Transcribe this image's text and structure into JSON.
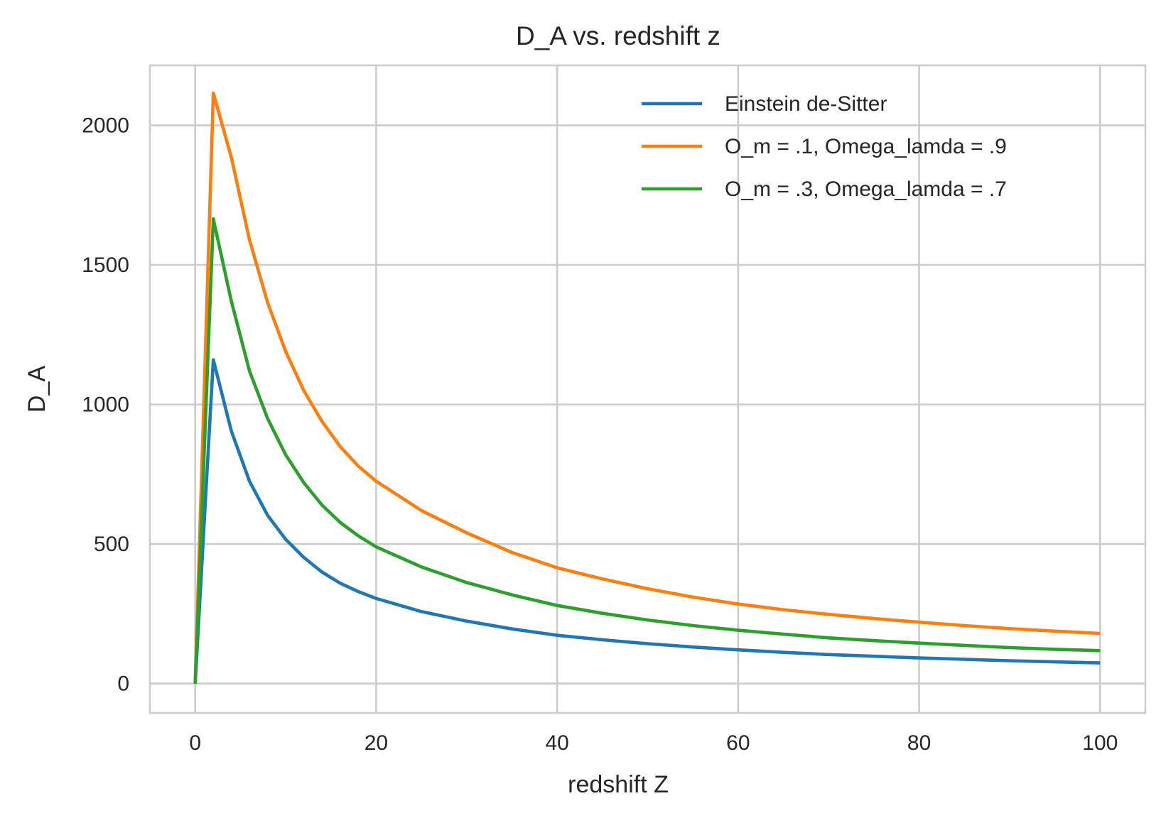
{
  "chart_data": {
    "type": "line",
    "title": "D_A vs. redshift z",
    "xlabel": "redshift Z",
    "ylabel": "D_A",
    "xlim": [
      -5,
      105
    ],
    "ylim": [
      -105,
      2215
    ],
    "xticks": [
      0,
      20,
      40,
      60,
      80,
      100
    ],
    "yticks": [
      0,
      500,
      1000,
      1500,
      2000
    ],
    "grid": true,
    "legend_position": "top-right",
    "x": [
      0,
      2,
      4,
      6,
      8,
      10,
      12,
      14,
      16,
      18,
      20,
      25,
      30,
      35,
      40,
      45,
      50,
      55,
      60,
      65,
      70,
      75,
      80,
      85,
      90,
      95,
      100
    ],
    "series": [
      {
        "name": "Einstein de-Sitter",
        "color": "#1f77b4",
        "values": [
          0,
          1160,
          905,
          725,
          603,
          517,
          452,
          400,
          360,
          330,
          305,
          258,
          224,
          196,
          173,
          157,
          143,
          131,
          121,
          112,
          104,
          98,
          92,
          87,
          82,
          78,
          74
        ]
      },
      {
        "name": "O_m = .1, Omega_lamda = .9",
        "color": "#ff7f0e",
        "values": [
          0,
          2115,
          1885,
          1590,
          1365,
          1190,
          1050,
          940,
          850,
          780,
          725,
          620,
          540,
          470,
          415,
          375,
          340,
          310,
          285,
          265,
          248,
          233,
          220,
          208,
          197,
          188,
          180
        ]
      },
      {
        "name": "O_m = .3, Omega_lamda = .7",
        "color": "#2ca02c",
        "values": [
          0,
          1665,
          1370,
          1120,
          950,
          820,
          720,
          640,
          578,
          530,
          490,
          418,
          362,
          318,
          280,
          252,
          228,
          208,
          191,
          177,
          164,
          154,
          145,
          137,
          129,
          123,
          118
        ]
      }
    ]
  }
}
